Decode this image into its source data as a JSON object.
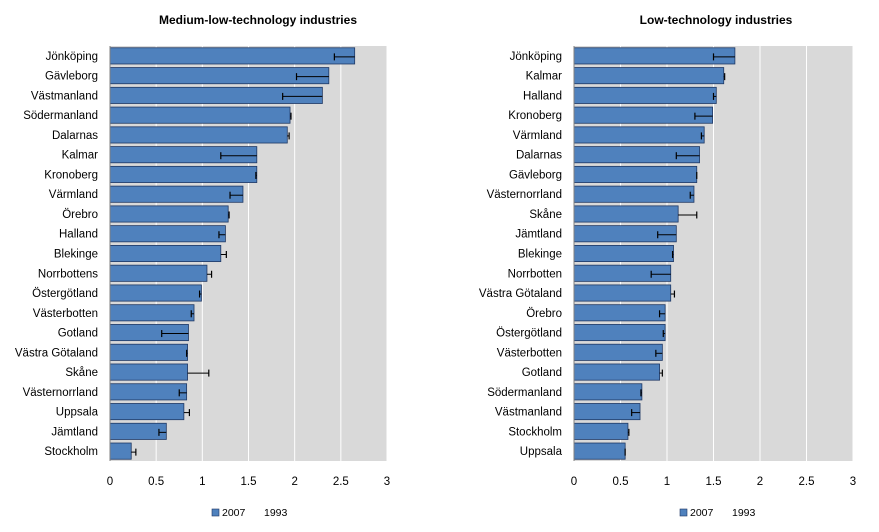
{
  "chart_data": [
    {
      "type": "bar",
      "orientation": "horizontal",
      "title": "Medium-low-technology industries",
      "categories": [
        "Jönköping",
        "Gävleborg",
        "Västmanland",
        "Södermanland",
        "Dalarnas",
        "Kalmar",
        "Kronoberg",
        "Värmland",
        "Örebro",
        "Halland",
        "Blekinge",
        "Norrbottens",
        "Östergötland",
        "Västerbotten",
        "Gotland",
        "Västra Götaland",
        "Skåne",
        "Västernorrland",
        "Uppsala",
        "Jämtland",
        "Stockholm"
      ],
      "series": [
        {
          "name": "2007",
          "values": [
            2.65,
            2.37,
            2.3,
            1.95,
            1.92,
            1.59,
            1.59,
            1.44,
            1.28,
            1.25,
            1.2,
            1.05,
            0.99,
            0.91,
            0.85,
            0.84,
            0.84,
            0.83,
            0.8,
            0.61,
            0.23
          ]
        },
        {
          "name": "1993",
          "values": [
            2.43,
            2.02,
            1.87,
            1.96,
            1.94,
            1.2,
            1.58,
            1.3,
            1.29,
            1.18,
            1.26,
            1.1,
            0.97,
            0.88,
            0.56,
            0.83,
            1.07,
            0.75,
            0.86,
            0.53,
            0.28
          ]
        }
      ],
      "xlim": [
        0,
        3
      ],
      "xticks": [
        "0",
        "0.5",
        "1",
        "1.5",
        "2",
        "2.5",
        "3"
      ],
      "grid": true,
      "legend": [
        "2007",
        "1993"
      ],
      "legend_position": "bottom"
    },
    {
      "type": "bar",
      "orientation": "horizontal",
      "title": "Low-technology industries",
      "categories": [
        "Jönköping",
        "Kalmar",
        "Halland",
        "Kronoberg",
        "Värmland",
        "Dalarnas",
        "Gävleborg",
        "Västernorrland",
        "Skåne",
        "Jämtland",
        "Blekinge",
        "Norrbotten",
        "Västra Götaland",
        "Örebro",
        "Östergötland",
        "Västerbotten",
        "Gotland",
        "Södermanland",
        "Västmanland",
        "Stockholm",
        "Uppsala"
      ],
      "series": [
        {
          "name": "2007",
          "values": [
            1.73,
            1.61,
            1.53,
            1.49,
            1.4,
            1.35,
            1.32,
            1.29,
            1.12,
            1.1,
            1.07,
            1.04,
            1.04,
            0.98,
            0.98,
            0.95,
            0.92,
            0.73,
            0.71,
            0.58,
            0.55
          ]
        },
        {
          "name": "1993",
          "values": [
            1.5,
            1.62,
            1.5,
            1.3,
            1.37,
            1.1,
            1.32,
            1.25,
            1.32,
            0.9,
            1.06,
            0.83,
            1.08,
            0.92,
            0.96,
            0.88,
            0.95,
            0.72,
            0.62,
            0.59,
            0.55
          ]
        }
      ],
      "xlim": [
        0,
        3
      ],
      "xticks": [
        "0",
        "0.5",
        "1",
        "1.5",
        "2",
        "2.5",
        "3"
      ],
      "grid": true,
      "legend": [
        "2007",
        "1993"
      ],
      "legend_position": "bottom"
    }
  ],
  "colors": {
    "bar_fill": "#4f81bd",
    "bar_stroke": "#1f3864",
    "plot_background": "#d9d9d9",
    "gridline": "#ffffff",
    "error_bar": "#000000"
  }
}
